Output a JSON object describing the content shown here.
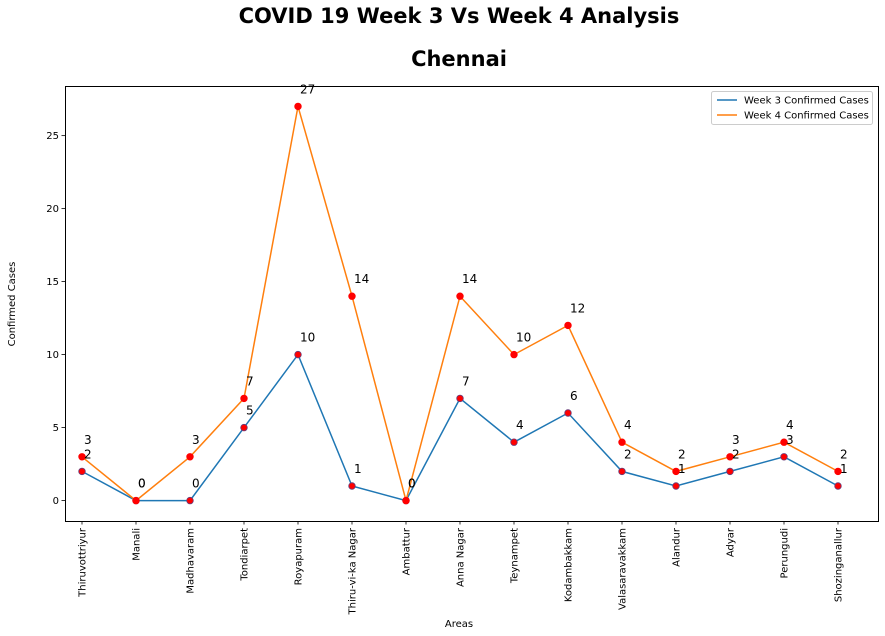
{
  "chart_data": {
    "type": "line",
    "title": "COVID 19 Week 3 Vs Week 4 Analysis",
    "subtitle": "Chennai",
    "xlabel": "Areas",
    "ylabel": "Confirmed Cases",
    "ylim": [
      -1.4,
      28.4
    ],
    "yticks": [
      0,
      5,
      10,
      15,
      20,
      25
    ],
    "categories": [
      "Thiruvottriyur",
      "Manali",
      "Madhavaram",
      "Tondiarpet",
      "Royapuram",
      "Thiru-vi-ka Nagar",
      "Ambattur",
      "Anna Nagar",
      "Teynampet",
      "Kodambakkam",
      "Valasaravakkam",
      "Alandur",
      "Adyar",
      "Perungudi",
      "Shozinganallur"
    ],
    "series": [
      {
        "name": "Week 3 Confirmed Cases",
        "color": "#1f77b4",
        "values": [
          2,
          0,
          0,
          5,
          10,
          1,
          0,
          7,
          4,
          6,
          2,
          1,
          2,
          3,
          1
        ]
      },
      {
        "name": "Week 4 Confirmed Cases",
        "color": "#ff7f0e",
        "values": [
          3,
          0,
          3,
          7,
          27,
          14,
          0,
          14,
          10,
          12,
          4,
          2,
          3,
          4,
          2
        ]
      }
    ],
    "marker_color": "#ff0000",
    "legend": "top-right",
    "grid": false
  }
}
